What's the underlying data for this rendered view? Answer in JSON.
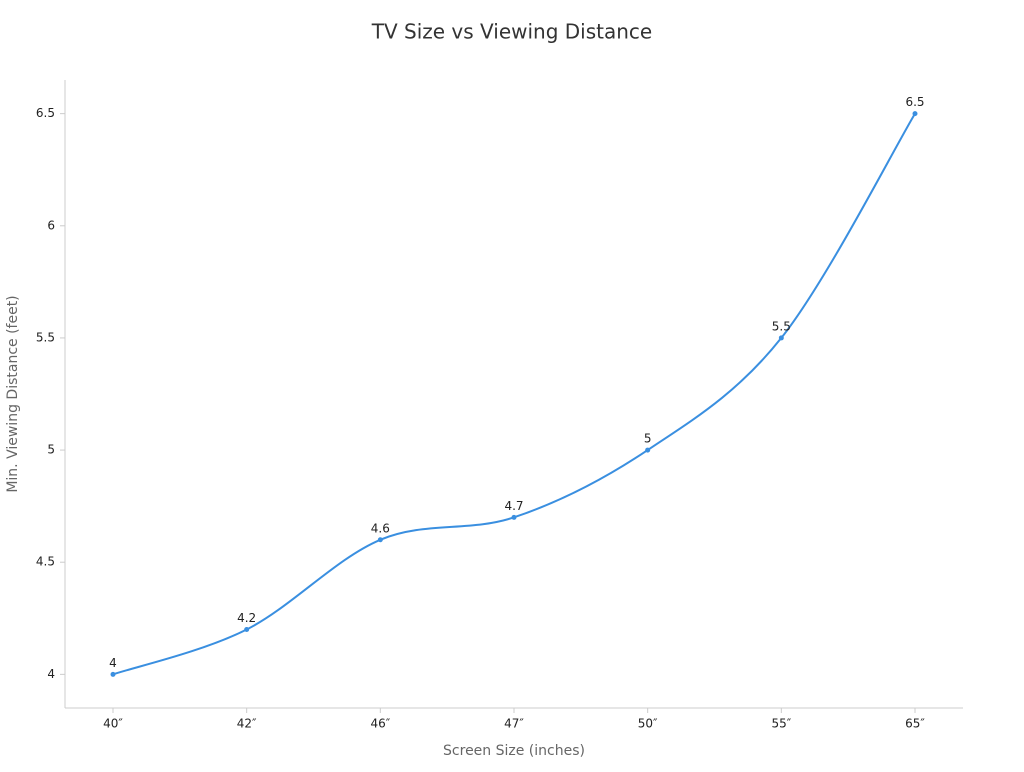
{
  "chart_data": {
    "type": "line",
    "title": "TV Size vs Viewing Distance",
    "x_label": "Screen Size (inches)",
    "y_label": "Min. Viewing Distance (feet)",
    "categories": [
      "40″",
      "42″",
      "46″",
      "47″",
      "50″",
      "55″",
      "65″"
    ],
    "values": [
      4,
      4.2,
      4.6,
      4.7,
      5,
      5.5,
      6.5
    ],
    "color": "#3a8fe0",
    "smooth": true,
    "grid": false,
    "ylim": [
      3.85,
      6.65
    ],
    "yticks": [
      4,
      4.5,
      5,
      5.5,
      6,
      6.5
    ]
  }
}
